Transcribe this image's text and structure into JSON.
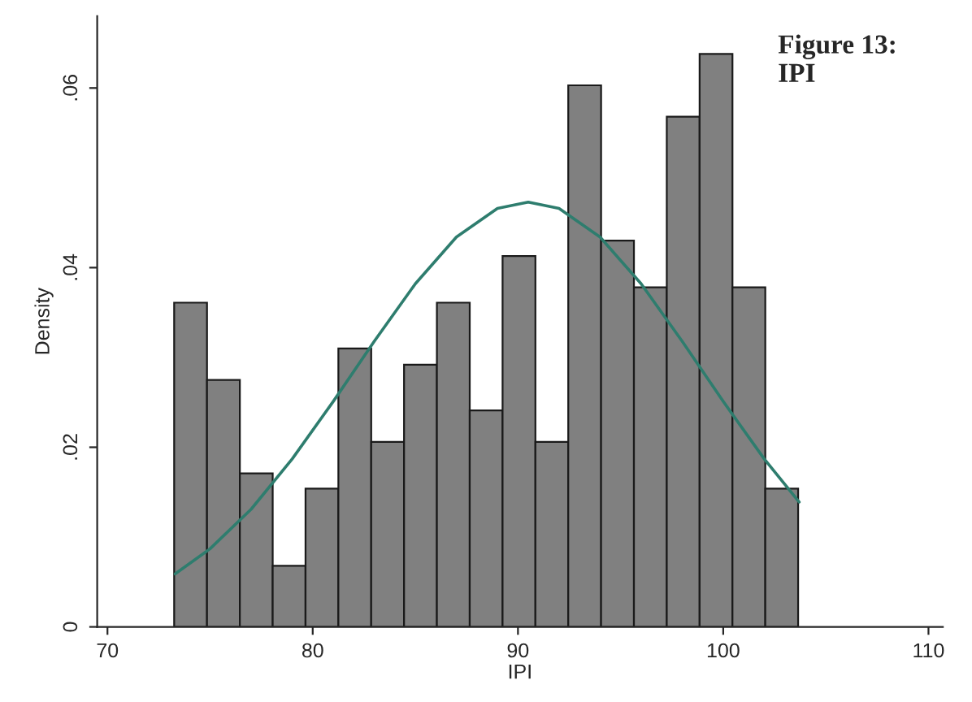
{
  "chart_data": {
    "type": "histogram",
    "xlabel": "IPI",
    "ylabel": "Density",
    "annotations": [
      "Figure 13:\nIPI"
    ],
    "bins": [
      73.25,
      74.85,
      76.45,
      78.05,
      79.65,
      81.25,
      82.85,
      84.45,
      86.05,
      87.65,
      89.25,
      90.85,
      92.45,
      94.05,
      95.65,
      97.25,
      98.85,
      100.45,
      102.05,
      103.65
    ],
    "values": [
      0.0361,
      0.0275,
      0.0171,
      0.0068,
      0.0154,
      0.031,
      0.0206,
      0.0292,
      0.0361,
      0.0241,
      0.0413,
      0.0206,
      0.0603,
      0.043,
      0.0378,
      0.0568,
      0.0638,
      0.0378,
      0.0154
    ],
    "color": "#808080",
    "series": [
      {
        "type": "line",
        "color": "#2e7d6e",
        "x": [
          73.3,
          75,
          77,
          79,
          81,
          83,
          85,
          87,
          89,
          90.5,
          92,
          94,
          96,
          98,
          100,
          102,
          103.7
        ],
        "values": [
          0.0059,
          0.0087,
          0.0131,
          0.0187,
          0.0251,
          0.0318,
          0.0382,
          0.0434,
          0.0466,
          0.0473,
          0.0466,
          0.0434,
          0.0382,
          0.0318,
          0.0251,
          0.0187,
          0.0139
        ]
      }
    ],
    "xlim": [
      69.5,
      110.7
    ],
    "xticks": [
      70,
      80,
      90,
      100,
      110
    ],
    "ylim": [
      0,
      0.068
    ],
    "yticks": [
      0,
      {
        "value": 0.02,
        "label": ".02"
      },
      {
        "value": 0.04,
        "label": ".04"
      },
      {
        "value": 0.06,
        "label": ".06"
      }
    ],
    "grid": false
  }
}
